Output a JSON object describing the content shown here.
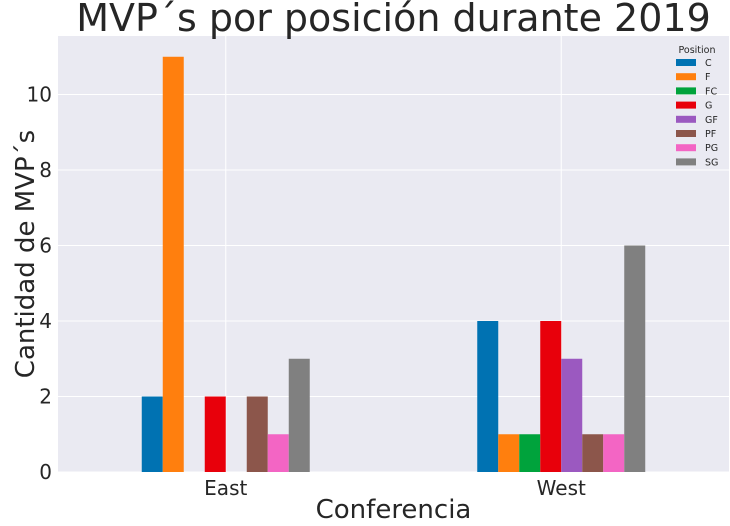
{
  "chart_data": {
    "type": "bar",
    "title": "MVP´s por posición durante 2019",
    "xlabel": "Conferencia",
    "ylabel": "Cantidad de MVP´s",
    "categories": [
      "East",
      "West"
    ],
    "ylim": [
      0,
      11.55
    ],
    "yticks": [
      0,
      2,
      4,
      6,
      8,
      10
    ],
    "grid": true,
    "legend": {
      "title": "Position",
      "placement": "top-right"
    },
    "series": [
      {
        "name": "C",
        "color": "#0072B2",
        "values": [
          2,
          4
        ]
      },
      {
        "name": "F",
        "color": "#FF7F0E",
        "values": [
          11,
          1
        ]
      },
      {
        "name": "FC",
        "color": "#00A33C",
        "values": [
          0,
          1
        ]
      },
      {
        "name": "G",
        "color": "#E8000B",
        "values": [
          2,
          4
        ]
      },
      {
        "name": "GF",
        "color": "#9B59C0",
        "values": [
          0,
          3
        ]
      },
      {
        "name": "PF",
        "color": "#8C564B",
        "values": [
          2,
          1
        ]
      },
      {
        "name": "PG",
        "color": "#F365C4",
        "values": [
          1,
          1
        ]
      },
      {
        "name": "SG",
        "color": "#808080",
        "values": [
          3,
          6
        ]
      }
    ]
  }
}
